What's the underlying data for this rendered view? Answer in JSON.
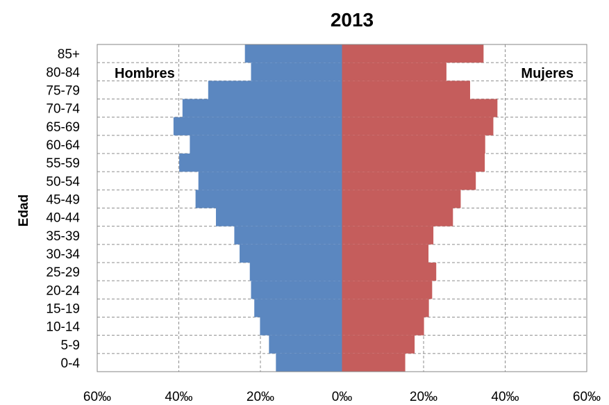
{
  "chart_data": {
    "type": "bar",
    "orientation": "horizontal",
    "layout": "population-pyramid",
    "title": "2013",
    "ylabel": "Edad",
    "categories": [
      "0-4",
      "5-9",
      "10-14",
      "15-19",
      "20-24",
      "25-29",
      "30-34",
      "35-39",
      "40-44",
      "45-49",
      "50-54",
      "55-59",
      "60-64",
      "65-69",
      "70-74",
      "75-79",
      "80-84",
      "85+"
    ],
    "series": [
      {
        "name": "Hombres",
        "side": "left",
        "color": "#5b87c0",
        "values": [
          16.2,
          17.9,
          20.1,
          21.5,
          22.3,
          22.6,
          25.1,
          26.4,
          30.9,
          35.9,
          35.2,
          39.9,
          37.3,
          41.3,
          39.1,
          32.8,
          22.3,
          23.8
        ]
      },
      {
        "name": "Mujeres",
        "side": "right",
        "color": "#c55d5c",
        "values": [
          15.5,
          17.8,
          20.1,
          21.3,
          22.1,
          23.1,
          21.2,
          22.4,
          27.2,
          29.1,
          32.8,
          35.0,
          35.1,
          37.1,
          38.1,
          31.4,
          25.6,
          34.7
        ]
      }
    ],
    "xticks": [
      "60‰",
      "40‰",
      "20‰",
      "0‰",
      "20‰",
      "40‰",
      "60‰"
    ],
    "xlim": [
      -60,
      60
    ],
    "unit": "‰",
    "grid": true,
    "legend": "inline labels, top-left and top-right"
  }
}
